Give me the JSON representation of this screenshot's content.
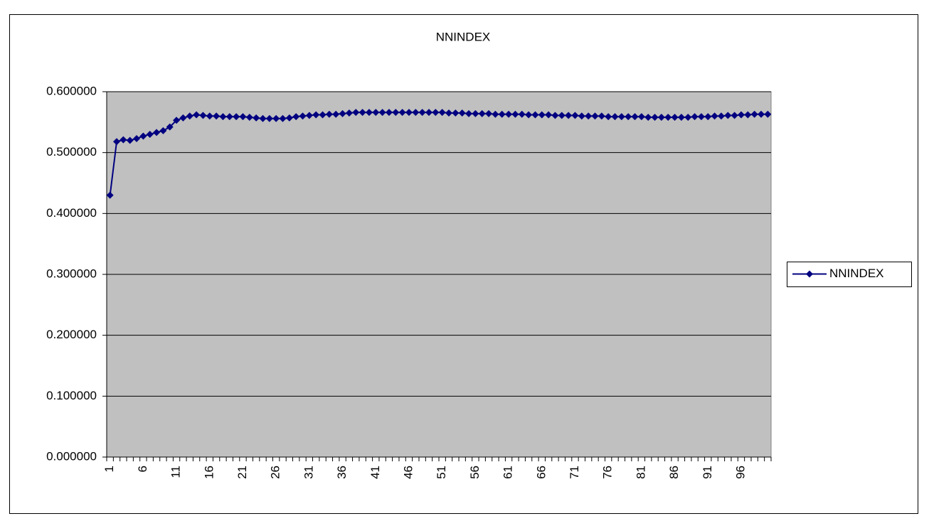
{
  "chart_data": {
    "type": "line",
    "title": "NNINDEX",
    "categories": [
      "1",
      null,
      null,
      null,
      null,
      "6",
      null,
      null,
      null,
      null,
      "11",
      null,
      null,
      null,
      null,
      "16",
      null,
      null,
      null,
      null,
      "21",
      null,
      null,
      null,
      null,
      "26",
      null,
      null,
      null,
      null,
      "31",
      null,
      null,
      null,
      null,
      "36",
      null,
      null,
      null,
      null,
      "41",
      null,
      null,
      null,
      null,
      "46",
      null,
      null,
      null,
      null,
      "51",
      null,
      null,
      null,
      null,
      "56",
      null,
      null,
      null,
      null,
      "61",
      null,
      null,
      null,
      null,
      "66",
      null,
      null,
      null,
      null,
      "71",
      null,
      null,
      null,
      null,
      "76",
      null,
      null,
      null,
      null,
      "81",
      null,
      null,
      null,
      null,
      "86",
      null,
      null,
      null,
      null,
      "91",
      null,
      null,
      null,
      null,
      "96",
      null,
      null,
      null,
      null
    ],
    "series": [
      {
        "name": "NNINDEX",
        "color": "#000080",
        "values": [
          0.43,
          0.518,
          0.521,
          0.52,
          0.523,
          0.527,
          0.53,
          0.533,
          0.536,
          0.542,
          0.553,
          0.557,
          0.56,
          0.562,
          0.561,
          0.56,
          0.56,
          0.559,
          0.559,
          0.559,
          0.559,
          0.558,
          0.557,
          0.556,
          0.556,
          0.556,
          0.556,
          0.557,
          0.559,
          0.56,
          0.561,
          0.562,
          0.562,
          0.563,
          0.563,
          0.564,
          0.565,
          0.566,
          0.566,
          0.566,
          0.566,
          0.566,
          0.566,
          0.566,
          0.566,
          0.566,
          0.566,
          0.566,
          0.566,
          0.566,
          0.566,
          0.565,
          0.565,
          0.565,
          0.564,
          0.564,
          0.564,
          0.564,
          0.563,
          0.563,
          0.563,
          0.563,
          0.563,
          0.562,
          0.562,
          0.562,
          0.562,
          0.561,
          0.561,
          0.561,
          0.561,
          0.56,
          0.56,
          0.56,
          0.56,
          0.559,
          0.559,
          0.559,
          0.559,
          0.559,
          0.559,
          0.558,
          0.558,
          0.558,
          0.558,
          0.558,
          0.558,
          0.558,
          0.559,
          0.559,
          0.559,
          0.56,
          0.56,
          0.561,
          0.561,
          0.562,
          0.562,
          0.563,
          0.563,
          0.563
        ]
      }
    ],
    "ylim": [
      0,
      0.6
    ],
    "yticks": [
      {
        "value": 0,
        "label": "0.000000"
      },
      {
        "value": 0.1,
        "label": "0.100000"
      },
      {
        "value": 0.2,
        "label": "0.200000"
      },
      {
        "value": 0.3,
        "label": "0.300000"
      },
      {
        "value": 0.4,
        "label": "0.400000"
      },
      {
        "value": 0.5,
        "label": "0.500000"
      },
      {
        "value": 0.6,
        "label": "0.600000"
      }
    ],
    "grid": true,
    "legend": "right",
    "plot_background": "#c0c0c0"
  }
}
